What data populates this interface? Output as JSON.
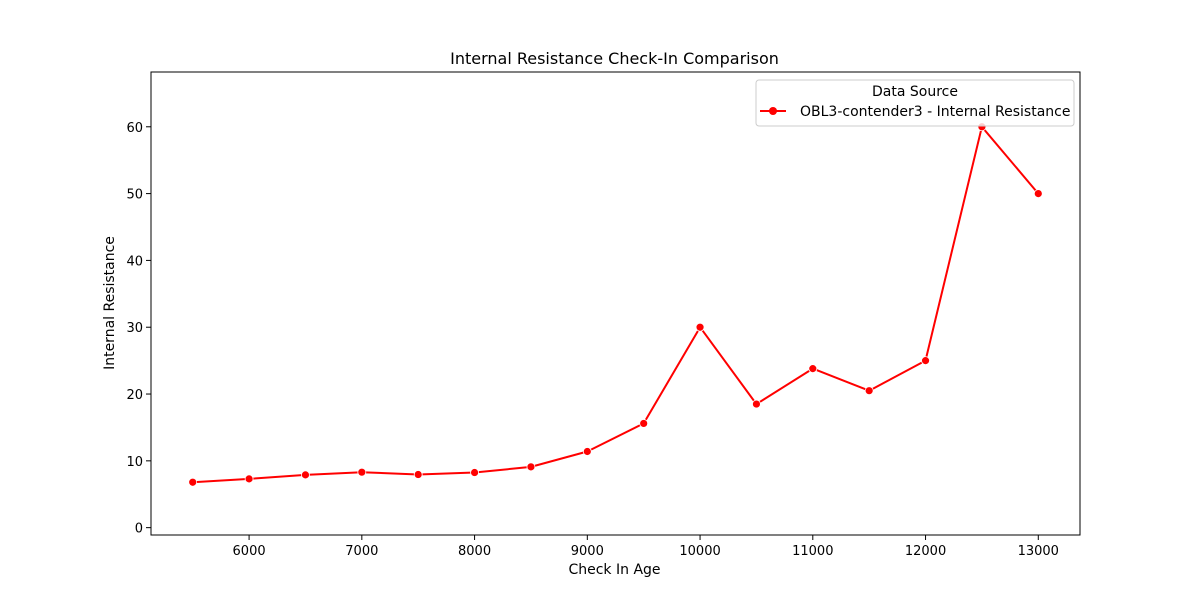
{
  "chart_data": {
    "type": "line",
    "title": "Internal Resistance Check-In Comparison",
    "xlabel": "Check In Age",
    "ylabel": "Internal Resistance",
    "xlim": [
      5130,
      13370
    ],
    "ylim": [
      -1.1,
      68.2
    ],
    "x_ticks": [
      6000,
      7000,
      8000,
      9000,
      10000,
      11000,
      12000,
      13000
    ],
    "y_ticks": [
      0,
      10,
      20,
      30,
      40,
      50,
      60
    ],
    "grid": false,
    "legend": {
      "title": "Data Source",
      "position": "top-right"
    },
    "series": [
      {
        "name": "OBL3-contender3 - Internal Resistance",
        "color": "#ff0000",
        "marker": "circle",
        "x": [
          5500,
          6000,
          6500,
          7000,
          7500,
          8000,
          8500,
          9000,
          9500,
          10000,
          10500,
          11000,
          11500,
          12000,
          12500,
          13000
        ],
        "y": [
          6.8,
          7.3,
          7.9,
          8.3,
          7.95,
          8.25,
          9.1,
          11.4,
          15.6,
          30.0,
          18.5,
          23.8,
          20.5,
          25.0,
          60.0,
          50.0
        ]
      }
    ]
  }
}
